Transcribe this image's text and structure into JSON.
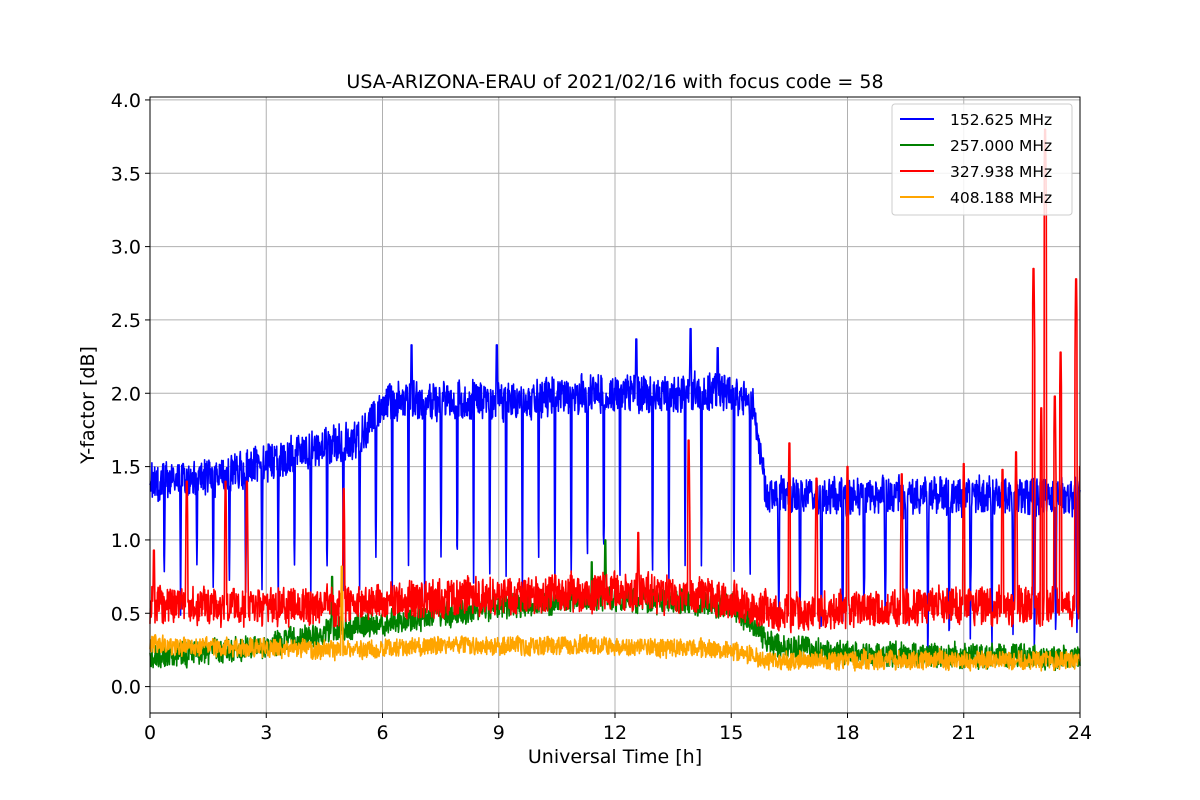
{
  "chart_data": {
    "type": "line",
    "title": "USA-ARIZONA-ERAU of 2021/02/16 with focus code = 58",
    "xlabel": "Universal Time [h]",
    "ylabel": "Y-factor [dB]",
    "xlim": [
      0,
      24
    ],
    "ylim": [
      -0.18,
      4.02
    ],
    "xticks": [
      0,
      3,
      6,
      9,
      12,
      15,
      18,
      21,
      24
    ],
    "xtick_labels": [
      "0",
      "3",
      "6",
      "9",
      "12",
      "15",
      "18",
      "21",
      "24"
    ],
    "yticks": [
      0.0,
      0.5,
      1.0,
      1.5,
      2.0,
      2.5,
      3.0,
      3.5,
      4.0
    ],
    "ytick_labels": [
      "0.0",
      "0.5",
      "1.0",
      "1.5",
      "2.0",
      "2.5",
      "3.0",
      "3.5",
      "4.0"
    ],
    "grid": true,
    "legend_position": "top-right",
    "series": [
      {
        "name": "152.625 MHz",
        "color": "#0000ff",
        "profile": [
          [
            0,
            1.4
          ],
          [
            2,
            1.45
          ],
          [
            4,
            1.6
          ],
          [
            5.5,
            1.7
          ],
          [
            6,
            1.95
          ],
          [
            9,
            1.95
          ],
          [
            12,
            2.0
          ],
          [
            15,
            2.0
          ],
          [
            15.6,
            1.9
          ],
          [
            15.9,
            1.3
          ],
          [
            18,
            1.3
          ],
          [
            21,
            1.3
          ],
          [
            24,
            1.3
          ]
        ],
        "dips": {
          "start": 0.35,
          "end": 15.8,
          "period": 0.42,
          "bottom": 0.45,
          "late_start": 16.2,
          "late_period": 0.55,
          "late_bottom": 0.15
        },
        "noise": 0.12,
        "peaks": [
          [
            13.95,
            2.44
          ],
          [
            12.55,
            2.37
          ],
          [
            8.95,
            2.33
          ],
          [
            6.75,
            2.33
          ],
          [
            14.65,
            2.31
          ]
        ]
      },
      {
        "name": "257.000 MHz",
        "color": "#008000",
        "profile": [
          [
            0,
            0.2
          ],
          [
            3,
            0.28
          ],
          [
            5,
            0.4
          ],
          [
            9,
            0.55
          ],
          [
            12,
            0.6
          ],
          [
            15,
            0.55
          ],
          [
            16,
            0.3
          ],
          [
            18,
            0.22
          ],
          [
            24,
            0.2
          ]
        ],
        "noise": 0.08,
        "peaks": [
          [
            11.75,
            1.0
          ],
          [
            11.4,
            0.85
          ],
          [
            4.7,
            0.75
          ]
        ]
      },
      {
        "name": "327.938 MHz",
        "color": "#ff0000",
        "profile": [
          [
            0,
            0.55
          ],
          [
            4,
            0.55
          ],
          [
            8,
            0.6
          ],
          [
            12,
            0.65
          ],
          [
            15,
            0.6
          ],
          [
            16,
            0.5
          ],
          [
            20,
            0.55
          ],
          [
            24,
            0.55
          ]
        ],
        "noise": 0.12,
        "peaks": [
          [
            23.1,
            3.8
          ],
          [
            22.8,
            2.85
          ],
          [
            23.9,
            2.78
          ],
          [
            23.5,
            2.28
          ],
          [
            23.35,
            1.98
          ],
          [
            23.0,
            1.9
          ],
          [
            22.35,
            1.6
          ],
          [
            13.9,
            1.68
          ],
          [
            16.5,
            1.66
          ],
          [
            0.95,
            1.4
          ],
          [
            1.95,
            1.4
          ],
          [
            2.5,
            1.4
          ],
          [
            5.0,
            1.35
          ],
          [
            17.2,
            1.42
          ],
          [
            18.0,
            1.5
          ],
          [
            19.4,
            1.45
          ],
          [
            21.0,
            1.52
          ],
          [
            22.0,
            1.48
          ],
          [
            24.0,
            1.5
          ],
          [
            0.1,
            0.93
          ],
          [
            12.6,
            1.05
          ]
        ]
      },
      {
        "name": "408.188 MHz",
        "color": "#ffa500",
        "profile": [
          [
            0,
            0.28
          ],
          [
            5,
            0.25
          ],
          [
            8,
            0.28
          ],
          [
            12,
            0.28
          ],
          [
            15,
            0.25
          ],
          [
            16,
            0.18
          ],
          [
            24,
            0.18
          ]
        ],
        "noise": 0.06,
        "peaks": [
          [
            4.95,
            0.82
          ]
        ]
      }
    ]
  }
}
